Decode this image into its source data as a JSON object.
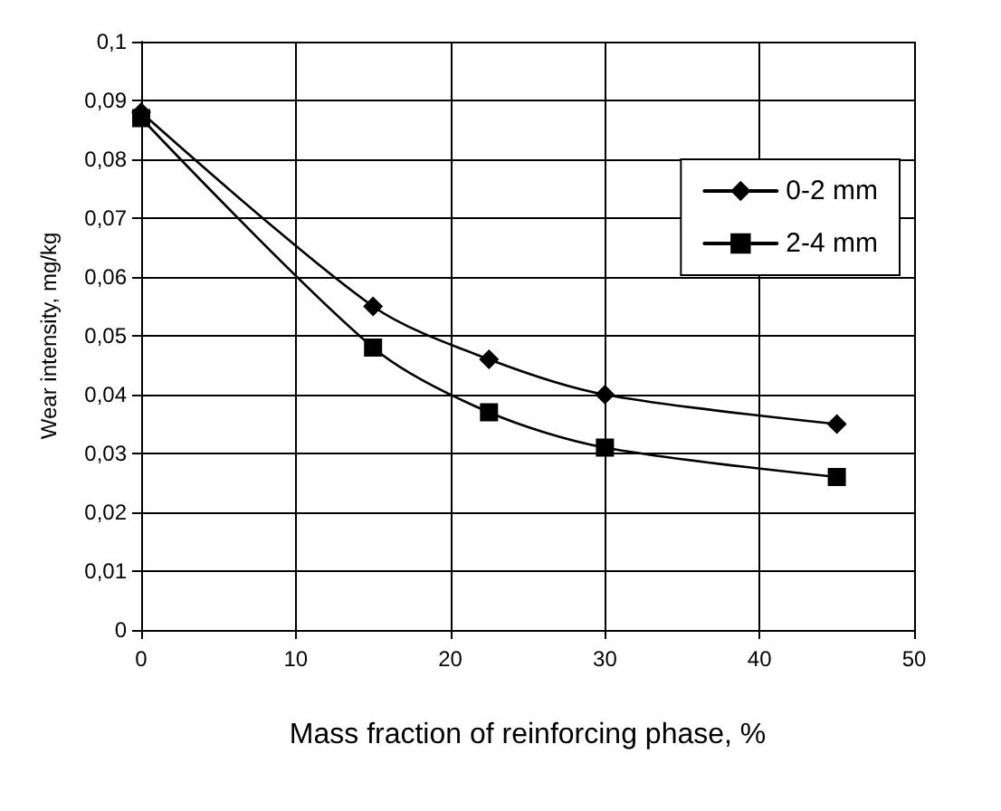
{
  "chart_data": {
    "type": "line",
    "xlabel": "Mass fraction of reinforcing phase, %",
    "ylabel": "Wear intensity, mg/kg",
    "series": [
      {
        "name": "0-2 mm",
        "color": "#000000",
        "marker": "diamond",
        "x": [
          0,
          15,
          22.5,
          30,
          45
        ],
        "values": [
          0.088,
          0.055,
          0.046,
          0.04,
          0.035
        ]
      },
      {
        "name": "2-4 mm",
        "color": "#000000",
        "marker": "square",
        "x": [
          0,
          15,
          22.5,
          30,
          45
        ],
        "values": [
          0.087,
          0.048,
          0.037,
          0.031,
          0.026
        ]
      }
    ],
    "xlim": [
      0,
      50
    ],
    "xticks": [
      0,
      10,
      20,
      30,
      40,
      50
    ],
    "ylim": [
      0,
      0.1
    ],
    "yticks": [
      {
        "value": 0,
        "label": "0"
      },
      {
        "value": 0.01,
        "label": "0,01"
      },
      {
        "value": 0.02,
        "label": "0,02"
      },
      {
        "value": 0.03,
        "label": "0,03"
      },
      {
        "value": 0.04,
        "label": "0,04"
      },
      {
        "value": 0.05,
        "label": "0,05"
      },
      {
        "value": 0.06,
        "label": "0,06"
      },
      {
        "value": 0.07,
        "label": "0,07"
      },
      {
        "value": 0.08,
        "label": "0,08"
      },
      {
        "value": 0.09,
        "label": "0,09"
      },
      {
        "value": 0.1,
        "label": "0,1"
      }
    ],
    "grid": true,
    "legend": "top right",
    "line_style": "solid"
  }
}
